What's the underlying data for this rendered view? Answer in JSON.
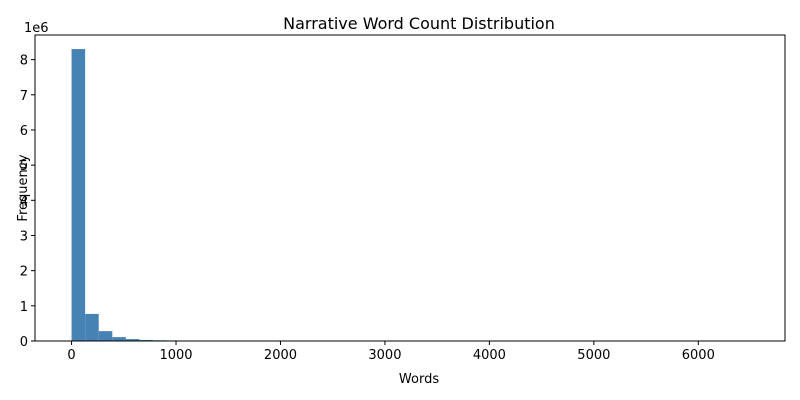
{
  "chart_data": {
    "type": "bar",
    "title": "Narrative Word Count Distribution",
    "xlabel": "Words",
    "ylabel": "Frequency",
    "y_offset_label": "1e6",
    "xlim": [
      -350,
      6830
    ],
    "ylim": [
      0,
      8.7
    ],
    "grid": false,
    "legend": "none",
    "bar_color": "#4682b4",
    "bin_width": 130,
    "x_ticks": [
      0,
      1000,
      2000,
      3000,
      4000,
      5000,
      6000
    ],
    "y_ticks": [
      0,
      1,
      2,
      3,
      4,
      5,
      6,
      7,
      8
    ],
    "bins": [
      {
        "start": 0,
        "value": 8.3
      },
      {
        "start": 130,
        "value": 0.77
      },
      {
        "start": 260,
        "value": 0.28
      },
      {
        "start": 390,
        "value": 0.11
      },
      {
        "start": 520,
        "value": 0.055
      },
      {
        "start": 650,
        "value": 0.03
      },
      {
        "start": 780,
        "value": 0.02
      },
      {
        "start": 910,
        "value": 0.015
      },
      {
        "start": 1040,
        "value": 0.01
      },
      {
        "start": 1170,
        "value": 0.005
      },
      {
        "start": 1300,
        "value": 0.003
      },
      {
        "start": 1430,
        "value": 0.002
      }
    ]
  }
}
